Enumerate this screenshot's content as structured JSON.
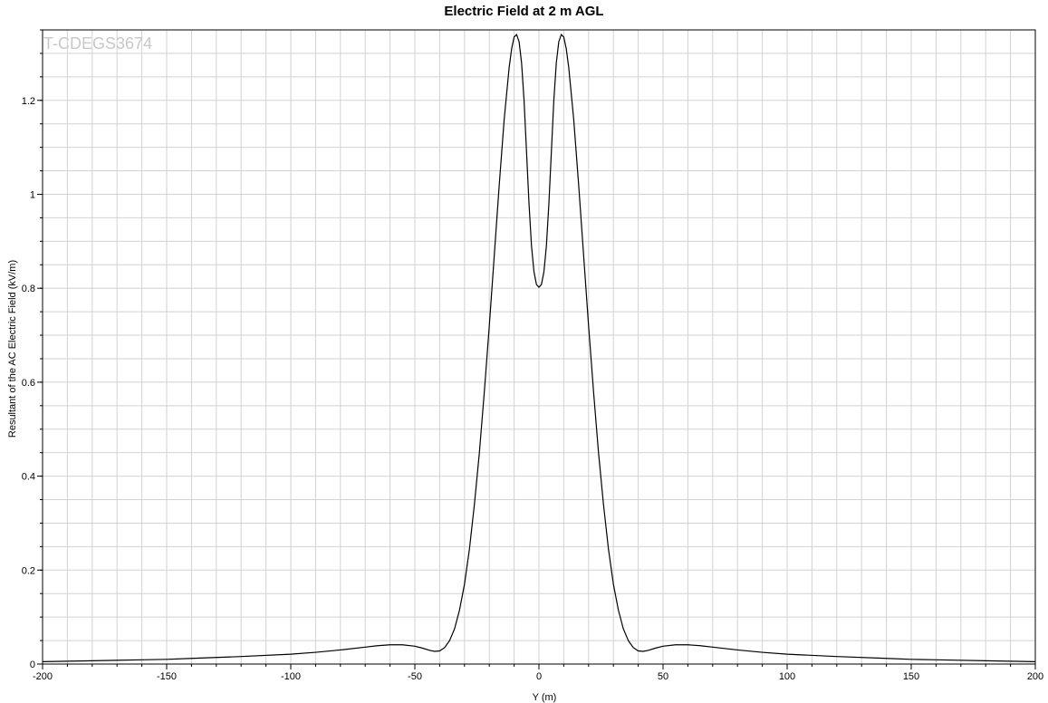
{
  "chart_data": {
    "type": "line",
    "title": "Electric Field at 2 m AGL",
    "watermark": "T-CDEGS3674",
    "xlabel": "Y (m)",
    "ylabel": "Resultant of the AC Electric Field (kV/m)",
    "xlim": [
      -200,
      200
    ],
    "ylim": [
      0,
      1.35
    ],
    "x_ticks": [
      -200,
      -150,
      -100,
      -50,
      0,
      50,
      100,
      150,
      200
    ],
    "y_ticks": [
      0,
      0.2,
      0.4,
      0.6,
      0.8,
      1,
      1.2
    ],
    "x_tick_labels": [
      "-200",
      "-150",
      "-100",
      "-50",
      "0",
      "50",
      "100",
      "150",
      "200"
    ],
    "y_tick_labels": [
      "0",
      "0.2",
      "0.4",
      "0.6",
      "0.8",
      "1",
      "1.2"
    ],
    "grid": true,
    "line_color": "#000000",
    "series": [
      {
        "x": [
          -200,
          -180,
          -160,
          -150,
          -140,
          -120,
          -100,
          -90,
          -80,
          -70,
          -65,
          -60,
          -55,
          -50,
          -47,
          -44,
          -42,
          -40,
          -38,
          -36,
          -34,
          -32,
          -30,
          -28,
          -26,
          -24,
          -22,
          -20,
          -18,
          -16,
          -14,
          -12,
          -11,
          -10,
          -9,
          -8,
          -7,
          -6,
          -5,
          -4,
          -3,
          -2,
          -1,
          0,
          1,
          2,
          3,
          4,
          5,
          6,
          7,
          8,
          9,
          10,
          11,
          12,
          14,
          16,
          18,
          20,
          22,
          24,
          26,
          28,
          30,
          32,
          34,
          36,
          38,
          40,
          42,
          44,
          47,
          50,
          55,
          60,
          65,
          70,
          80,
          90,
          100,
          120,
          140,
          150,
          160,
          180,
          200
        ],
        "values": [
          0.005,
          0.007,
          0.009,
          0.01,
          0.012,
          0.016,
          0.021,
          0.025,
          0.03,
          0.036,
          0.039,
          0.041,
          0.041,
          0.038,
          0.034,
          0.029,
          0.027,
          0.028,
          0.035,
          0.05,
          0.075,
          0.115,
          0.17,
          0.245,
          0.34,
          0.45,
          0.58,
          0.72,
          0.87,
          1.02,
          1.16,
          1.27,
          1.31,
          1.335,
          1.34,
          1.325,
          1.28,
          1.2,
          1.09,
          0.98,
          0.89,
          0.835,
          0.808,
          0.802,
          0.808,
          0.835,
          0.89,
          0.98,
          1.09,
          1.2,
          1.28,
          1.325,
          1.34,
          1.335,
          1.31,
          1.27,
          1.16,
          1.02,
          0.87,
          0.72,
          0.58,
          0.45,
          0.34,
          0.245,
          0.17,
          0.115,
          0.075,
          0.05,
          0.035,
          0.028,
          0.027,
          0.029,
          0.034,
          0.038,
          0.041,
          0.041,
          0.039,
          0.036,
          0.03,
          0.025,
          0.021,
          0.016,
          0.012,
          0.01,
          0.009,
          0.007,
          0.005
        ]
      }
    ]
  }
}
